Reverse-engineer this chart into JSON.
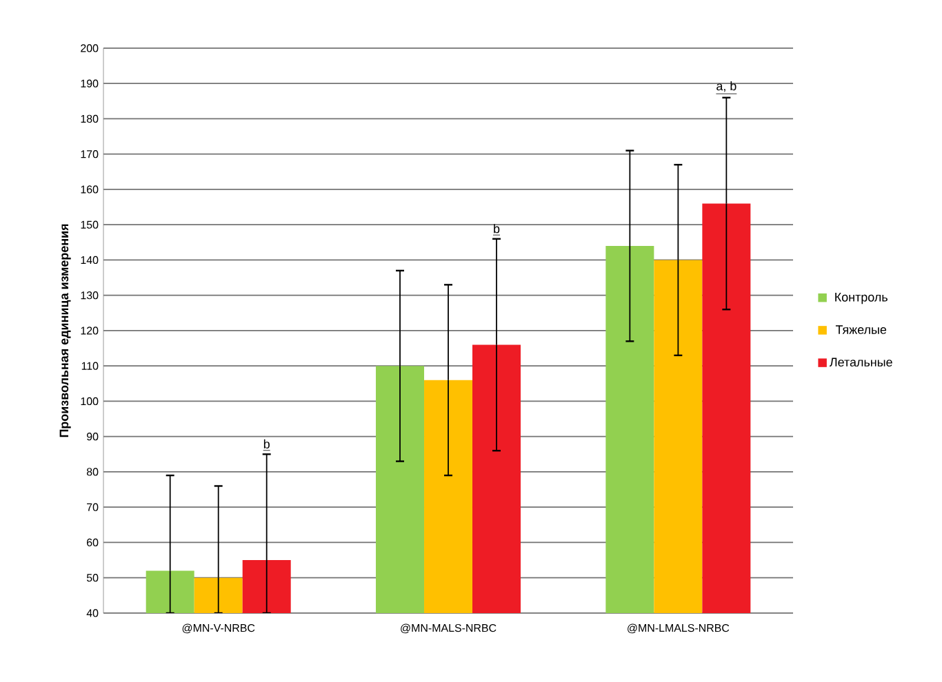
{
  "chart_data": {
    "type": "bar",
    "ylabel": "Произвольная единица измерения",
    "categories": [
      "@MN-V-NRBC",
      "@MN-MALS-NRBC",
      "@MN-LMALS-NRBC"
    ],
    "series": [
      {
        "name": "Контроль",
        "color": "#92d050",
        "values": [
          52,
          110,
          144
        ],
        "errors": [
          [
            40,
            79
          ],
          27,
          27
        ]
      },
      {
        "name": "Тяжелые",
        "color": "#ffc000",
        "values": [
          50,
          106,
          140
        ],
        "errors": [
          [
            40,
            76
          ],
          27,
          27
        ]
      },
      {
        "name": "Летальные",
        "color": "#ee1c25",
        "values": [
          55,
          116,
          156
        ],
        "errors": [
          [
            40,
            85
          ],
          30,
          30
        ]
      }
    ],
    "ylim": [
      40,
      200
    ],
    "yticks": [
      40,
      50,
      60,
      70,
      80,
      90,
      100,
      110,
      120,
      130,
      140,
      150,
      160,
      170,
      180,
      190,
      200
    ],
    "grid": "y",
    "legend": "right",
    "annotations": [
      "b",
      "b",
      "a, b"
    ]
  }
}
